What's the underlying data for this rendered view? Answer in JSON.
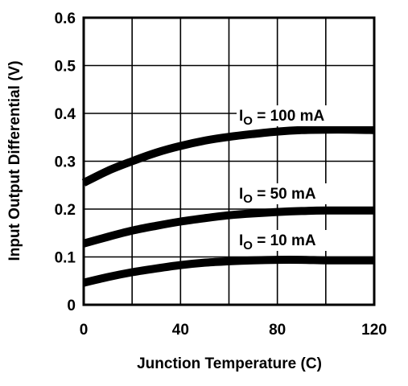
{
  "chart_data": {
    "type": "line",
    "xlabel": "Junction Temperature (C)",
    "ylabel": "Input Output Differential (V)",
    "xlim": [
      0,
      120
    ],
    "ylim": [
      0,
      0.6
    ],
    "x_ticks": [
      0,
      40,
      80,
      120
    ],
    "y_ticks": [
      0,
      0.1,
      0.2,
      0.3,
      0.4,
      0.5,
      0.6
    ],
    "y_tick_labels": [
      "0",
      "0.1",
      "0.2",
      "0.3",
      "0.4",
      "0.5",
      "0.6"
    ],
    "grid": true,
    "series": [
      {
        "name": "IO = 100 mA",
        "label_main": "I",
        "label_sub": "O",
        "label_rest": " = 100 mA",
        "x": [
          0,
          10,
          20,
          30,
          40,
          50,
          60,
          70,
          80,
          90,
          100,
          110,
          120
        ],
        "y": [
          0.255,
          0.28,
          0.3,
          0.318,
          0.332,
          0.343,
          0.351,
          0.357,
          0.362,
          0.365,
          0.366,
          0.366,
          0.365
        ]
      },
      {
        "name": "IO = 50 mA",
        "label_main": "I",
        "label_sub": "O",
        "label_rest": " = 50 mA",
        "x": [
          0,
          10,
          20,
          30,
          40,
          50,
          60,
          70,
          80,
          90,
          100,
          110,
          120
        ],
        "y": [
          0.128,
          0.142,
          0.155,
          0.165,
          0.174,
          0.181,
          0.187,
          0.191,
          0.194,
          0.196,
          0.197,
          0.197,
          0.197
        ]
      },
      {
        "name": "IO = 10 mA",
        "label_main": "I",
        "label_sub": "O",
        "label_rest": " = 10 mA",
        "x": [
          0,
          10,
          20,
          30,
          40,
          50,
          60,
          70,
          80,
          90,
          100,
          110,
          120
        ],
        "y": [
          0.046,
          0.058,
          0.068,
          0.076,
          0.083,
          0.088,
          0.091,
          0.093,
          0.094,
          0.094,
          0.093,
          0.093,
          0.093
        ]
      }
    ]
  }
}
